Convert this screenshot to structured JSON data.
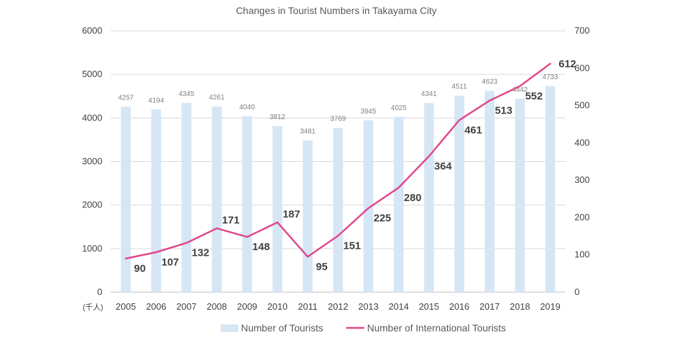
{
  "chart_data": {
    "type": "bar",
    "title": "Changes in Tourist Numbers in Takayama City",
    "unit_label": "(千人)",
    "categories": [
      "2005",
      "2006",
      "2007",
      "2008",
      "2009",
      "2010",
      "2011",
      "2012",
      "2013",
      "2014",
      "2015",
      "2016",
      "2017",
      "2018",
      "2019"
    ],
    "series": [
      {
        "name": "Number of Tourists",
        "type": "bar",
        "axis": "left",
        "color": "#d6e6f5",
        "values": [
          4257,
          4194,
          4345,
          4261,
          4040,
          3812,
          3481,
          3769,
          3945,
          4025,
          4341,
          4511,
          4623,
          4442,
          4733
        ]
      },
      {
        "name": "Number of International Tourists",
        "type": "line",
        "axis": "right",
        "color": "#e0468c",
        "values": [
          90,
          107,
          132,
          171,
          148,
          187,
          95,
          151,
          225,
          280,
          364,
          461,
          513,
          552,
          612
        ]
      }
    ],
    "y_left": {
      "min": 0,
      "max": 6000,
      "ticks": [
        0,
        1000,
        2000,
        3000,
        4000,
        5000,
        6000
      ]
    },
    "y_right": {
      "min": 0,
      "max": 700,
      "ticks": [
        0,
        100,
        200,
        300,
        400,
        500,
        600,
        700
      ]
    },
    "grid": true,
    "legend": "bottom"
  }
}
